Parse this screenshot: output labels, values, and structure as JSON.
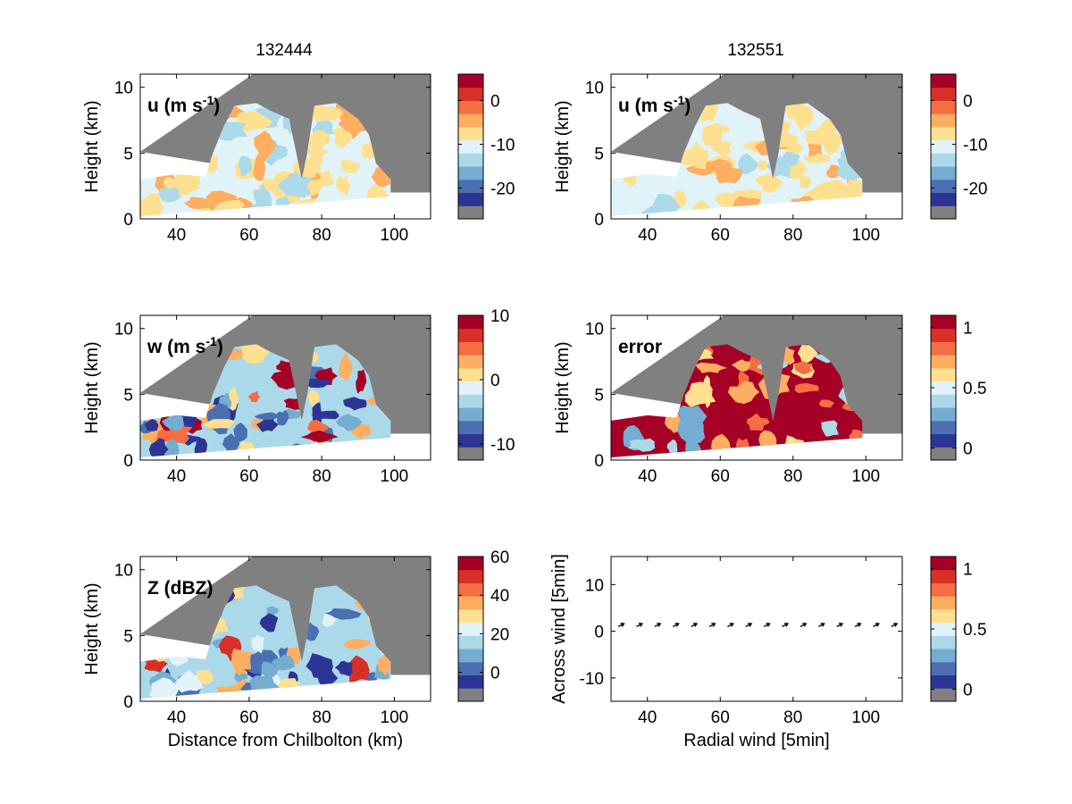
{
  "figure": {
    "titles": [
      "132444",
      "132551"
    ],
    "xlabel_bottom_left": "Distance from Chilbolton (km)"
  },
  "colormap": [
    "#808080",
    "#2c3596",
    "#4a70b1",
    "#74add1",
    "#abd9e9",
    "#e0f3f8",
    "#fee090",
    "#fdae61",
    "#f46d43",
    "#d73027",
    "#a50026"
  ],
  "chart_data": [
    {
      "id": "u-132444",
      "type": "heatmap",
      "panel_label": "u (m s-1)",
      "ylabel": "Height (km)",
      "xlim": [
        30,
        110
      ],
      "ylim": [
        0,
        11
      ],
      "xticks": [
        40,
        60,
        80,
        100
      ],
      "yticks": [
        0,
        5,
        10
      ],
      "colorbar": {
        "ticks": [
          0,
          -10,
          -20
        ],
        "range": [
          -27,
          6
        ]
      }
    },
    {
      "id": "u-132551",
      "type": "heatmap",
      "panel_label": "u (m s-1)",
      "ylabel": "Height (km)",
      "xlim": [
        30,
        110
      ],
      "ylim": [
        0,
        11
      ],
      "xticks": [
        40,
        60,
        80,
        100
      ],
      "yticks": [
        0,
        5,
        10
      ],
      "colorbar": {
        "ticks": [
          0,
          -10,
          -20
        ],
        "range": [
          -27,
          6
        ]
      }
    },
    {
      "id": "w-132444",
      "type": "heatmap",
      "panel_label": "w (m s-1)",
      "ylabel": "Height (km)",
      "xlim": [
        30,
        110
      ],
      "ylim": [
        0,
        11
      ],
      "xticks": [
        40,
        60,
        80,
        100
      ],
      "yticks": [
        0,
        5,
        10
      ],
      "colorbar": {
        "ticks": [
          10,
          0,
          -10
        ],
        "range": [
          -12.5,
          10
        ]
      }
    },
    {
      "id": "error-132551",
      "type": "heatmap",
      "panel_label": "error",
      "ylabel": "Height (km)",
      "xlim": [
        30,
        110
      ],
      "ylim": [
        0,
        11
      ],
      "xticks": [
        40,
        60,
        80,
        100
      ],
      "yticks": [
        0,
        5,
        10
      ],
      "colorbar": {
        "ticks": [
          1,
          0.5,
          0
        ],
        "range": [
          -0.1,
          1.1
        ]
      }
    },
    {
      "id": "Z-132444",
      "type": "heatmap",
      "panel_label": "Z (dBZ)",
      "ylabel": "Height (km)",
      "xlabel": "Distance from Chilbolton (km)",
      "xlim": [
        30,
        110
      ],
      "ylim": [
        0,
        11
      ],
      "xticks": [
        40,
        60,
        80,
        100
      ],
      "yticks": [
        0,
        5,
        10
      ],
      "colorbar": {
        "ticks": [
          60,
          40,
          20,
          0
        ],
        "range": [
          -15,
          60
        ]
      }
    },
    {
      "id": "wind-quiver",
      "type": "scatter",
      "ylabel": "Across wind [5min]",
      "xlabel": "Radial wind [5min]",
      "xlim": [
        30,
        110
      ],
      "ylim": [
        -15,
        16
      ],
      "xticks": [
        40,
        60,
        80,
        100
      ],
      "yticks": [
        10,
        0,
        -10
      ],
      "arrows": {
        "x": [
          32,
          37,
          42,
          47,
          52,
          57,
          62,
          67,
          72,
          77,
          82,
          87,
          92,
          97,
          102,
          107
        ],
        "y": 1,
        "dx": 2.0,
        "dy": 1.0
      },
      "colorbar": {
        "ticks": [
          1,
          0.5,
          0
        ],
        "range": [
          -0.1,
          1.1
        ]
      }
    }
  ]
}
